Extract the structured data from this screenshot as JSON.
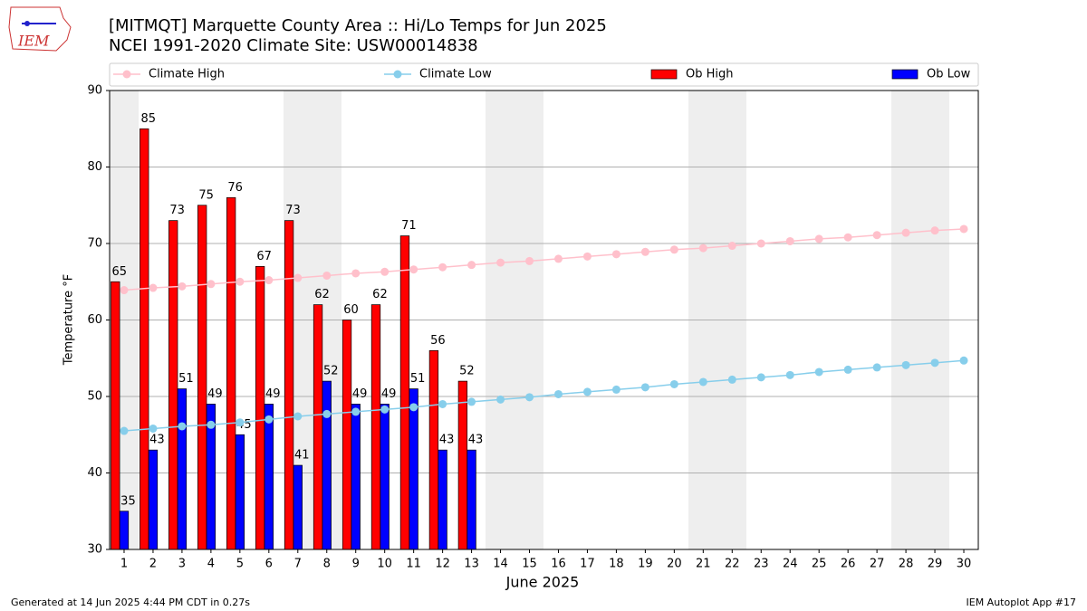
{
  "logo_text": "IEM",
  "chart_data": {
    "type": "bar",
    "title": "[MITMQT] Marquette County Area :: Hi/Lo Temps for Jun 2025",
    "subtitle": "NCEI 1991-2020 Climate Site: USW00014838",
    "x_label": "June 2025",
    "y_label": "Temperature °F",
    "footer_left": "Generated at 14 Jun 2025 4:44 PM CDT in 0.27s",
    "footer_right": "IEM Autoplot App #17",
    "categories": [
      "1",
      "2",
      "3",
      "4",
      "5",
      "6",
      "7",
      "8",
      "9",
      "10",
      "11",
      "12",
      "13",
      "14",
      "15",
      "16",
      "17",
      "18",
      "19",
      "20",
      "21",
      "22",
      "23",
      "24",
      "25",
      "26",
      "27",
      "28",
      "29",
      "30"
    ],
    "ylim": [
      30,
      90
    ],
    "yticks": [
      30,
      40,
      50,
      60,
      70,
      80,
      90
    ],
    "grid": true,
    "series": [
      {
        "name": "Climate High",
        "type": "line",
        "color": "#ffc0cb",
        "values": [
          63.9,
          64.2,
          64.4,
          64.7,
          65.0,
          65.2,
          65.5,
          65.8,
          66.1,
          66.3,
          66.6,
          66.9,
          67.2,
          67.5,
          67.7,
          68.0,
          68.3,
          68.6,
          68.9,
          69.2,
          69.4,
          69.7,
          70.0,
          70.3,
          70.6,
          70.8,
          71.1,
          71.4,
          71.7,
          71.9
        ]
      },
      {
        "name": "Climate Low",
        "type": "line",
        "color": "#87ceeb",
        "values": [
          45.5,
          45.8,
          46.1,
          46.3,
          46.6,
          47.0,
          47.4,
          47.7,
          48.0,
          48.3,
          48.6,
          49.0,
          49.3,
          49.6,
          49.9,
          50.3,
          50.6,
          50.9,
          51.2,
          51.6,
          51.9,
          52.2,
          52.5,
          52.8,
          53.2,
          53.5,
          53.8,
          54.1,
          54.4,
          54.7
        ]
      },
      {
        "name": "Ob High",
        "type": "bar",
        "color": "#ff0000",
        "values": [
          65,
          85,
          73,
          75,
          76,
          67,
          73,
          62,
          60,
          62,
          71,
          56,
          52,
          null,
          null,
          null,
          null,
          null,
          null,
          null,
          null,
          null,
          null,
          null,
          null,
          null,
          null,
          null,
          null,
          null
        ]
      },
      {
        "name": "Ob Low",
        "type": "bar",
        "color": "#0000ff",
        "values": [
          35,
          43,
          51,
          49,
          45,
          49,
          41,
          52,
          49,
          49,
          51,
          43,
          43,
          null,
          null,
          null,
          null,
          null,
          null,
          null,
          null,
          null,
          null,
          null,
          null,
          null,
          null,
          null,
          null,
          null
        ]
      }
    ]
  }
}
